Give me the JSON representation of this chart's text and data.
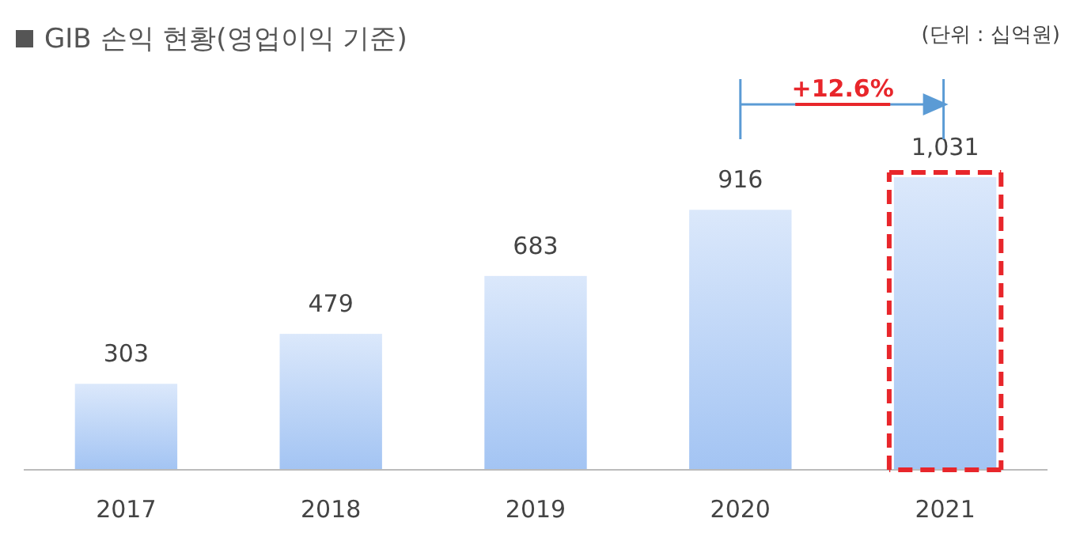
{
  "chart_data": {
    "type": "bar",
    "title": "GIB 손익 현황(영업이익 기준)",
    "categories": [
      "2017",
      "2018",
      "2019",
      "2020",
      "2021"
    ],
    "values": [
      303,
      479,
      683,
      916,
      1031
    ],
    "color": "#a3c4f3",
    "value_labels": [
      "303",
      "479",
      "683",
      "916",
      "1,031"
    ],
    "annotations": [
      "(단위 : 십억원)",
      "+12.6%"
    ]
  }
}
